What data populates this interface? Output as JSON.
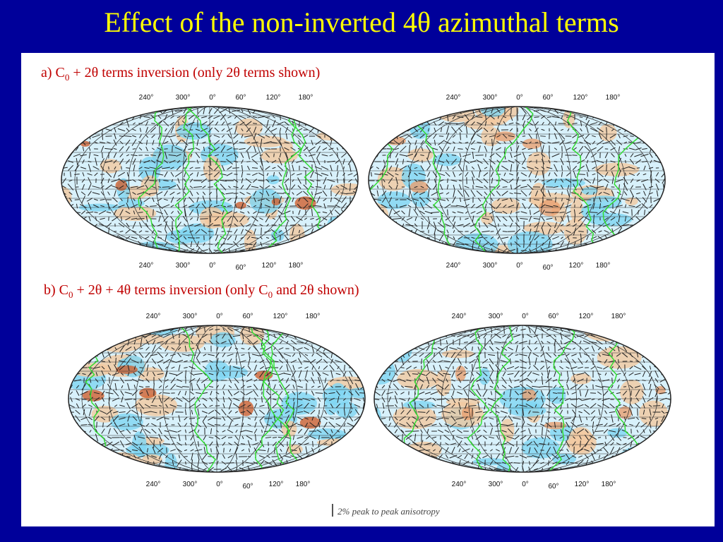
{
  "title": "Effect of the non-inverted 4θ azimuthal terms",
  "panels": [
    {
      "caption": [
        "a) C",
        "0",
        " + 2θ terms inversion (only 2θ terms shown)"
      ]
    },
    {
      "caption": [
        "b) C",
        "0",
        " + 2θ + 4θ terms inversion (only C",
        "0",
        " and 2θ shown)"
      ]
    }
  ],
  "longitude_labels": [
    "240°",
    "300°",
    "0°",
    "60°",
    "120°",
    "180°"
  ],
  "legend": "2% peak to peak anisotropy"
}
